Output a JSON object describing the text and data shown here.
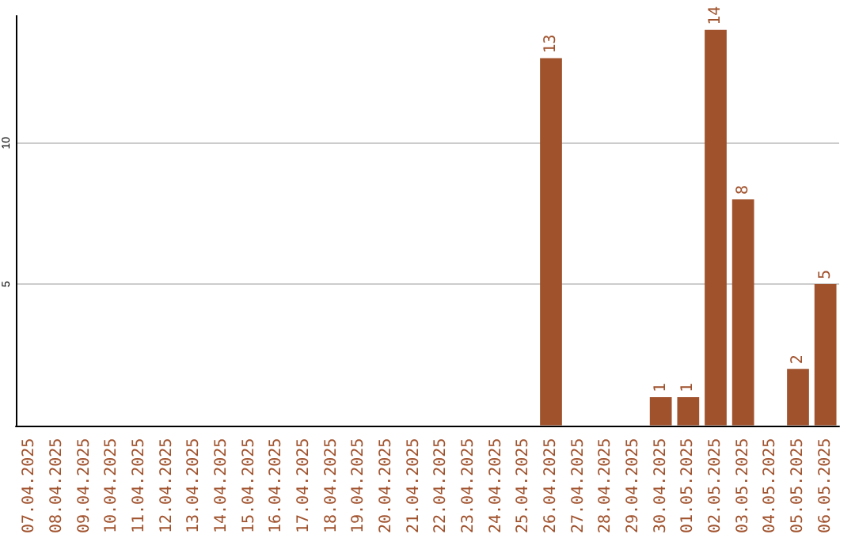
{
  "chart_data": {
    "type": "bar",
    "categories": [
      "07.04.2025",
      "08.04.2025",
      "09.04.2025",
      "10.04.2025",
      "11.04.2025",
      "12.04.2025",
      "13.04.2025",
      "14.04.2025",
      "15.04.2025",
      "16.04.2025",
      "17.04.2025",
      "18.04.2025",
      "19.04.2025",
      "20.04.2025",
      "21.04.2025",
      "22.04.2025",
      "23.04.2025",
      "24.04.2025",
      "25.04.2025",
      "26.04.2025",
      "27.04.2025",
      "28.04.2025",
      "29.04.2025",
      "30.04.2025",
      "01.05.2025",
      "02.05.2025",
      "03.05.2025",
      "04.05.2025",
      "05.05.2025",
      "06.05.2025"
    ],
    "values": [
      null,
      null,
      null,
      null,
      null,
      null,
      null,
      null,
      null,
      null,
      null,
      null,
      null,
      null,
      null,
      null,
      null,
      null,
      null,
      13,
      null,
      null,
      null,
      1,
      1,
      14,
      8,
      null,
      2,
      5
    ],
    "color": "#a0522d",
    "ylim": [
      0,
      14.5
    ],
    "yticks": [
      5,
      10
    ],
    "grid": "y",
    "data_labels": true
  }
}
